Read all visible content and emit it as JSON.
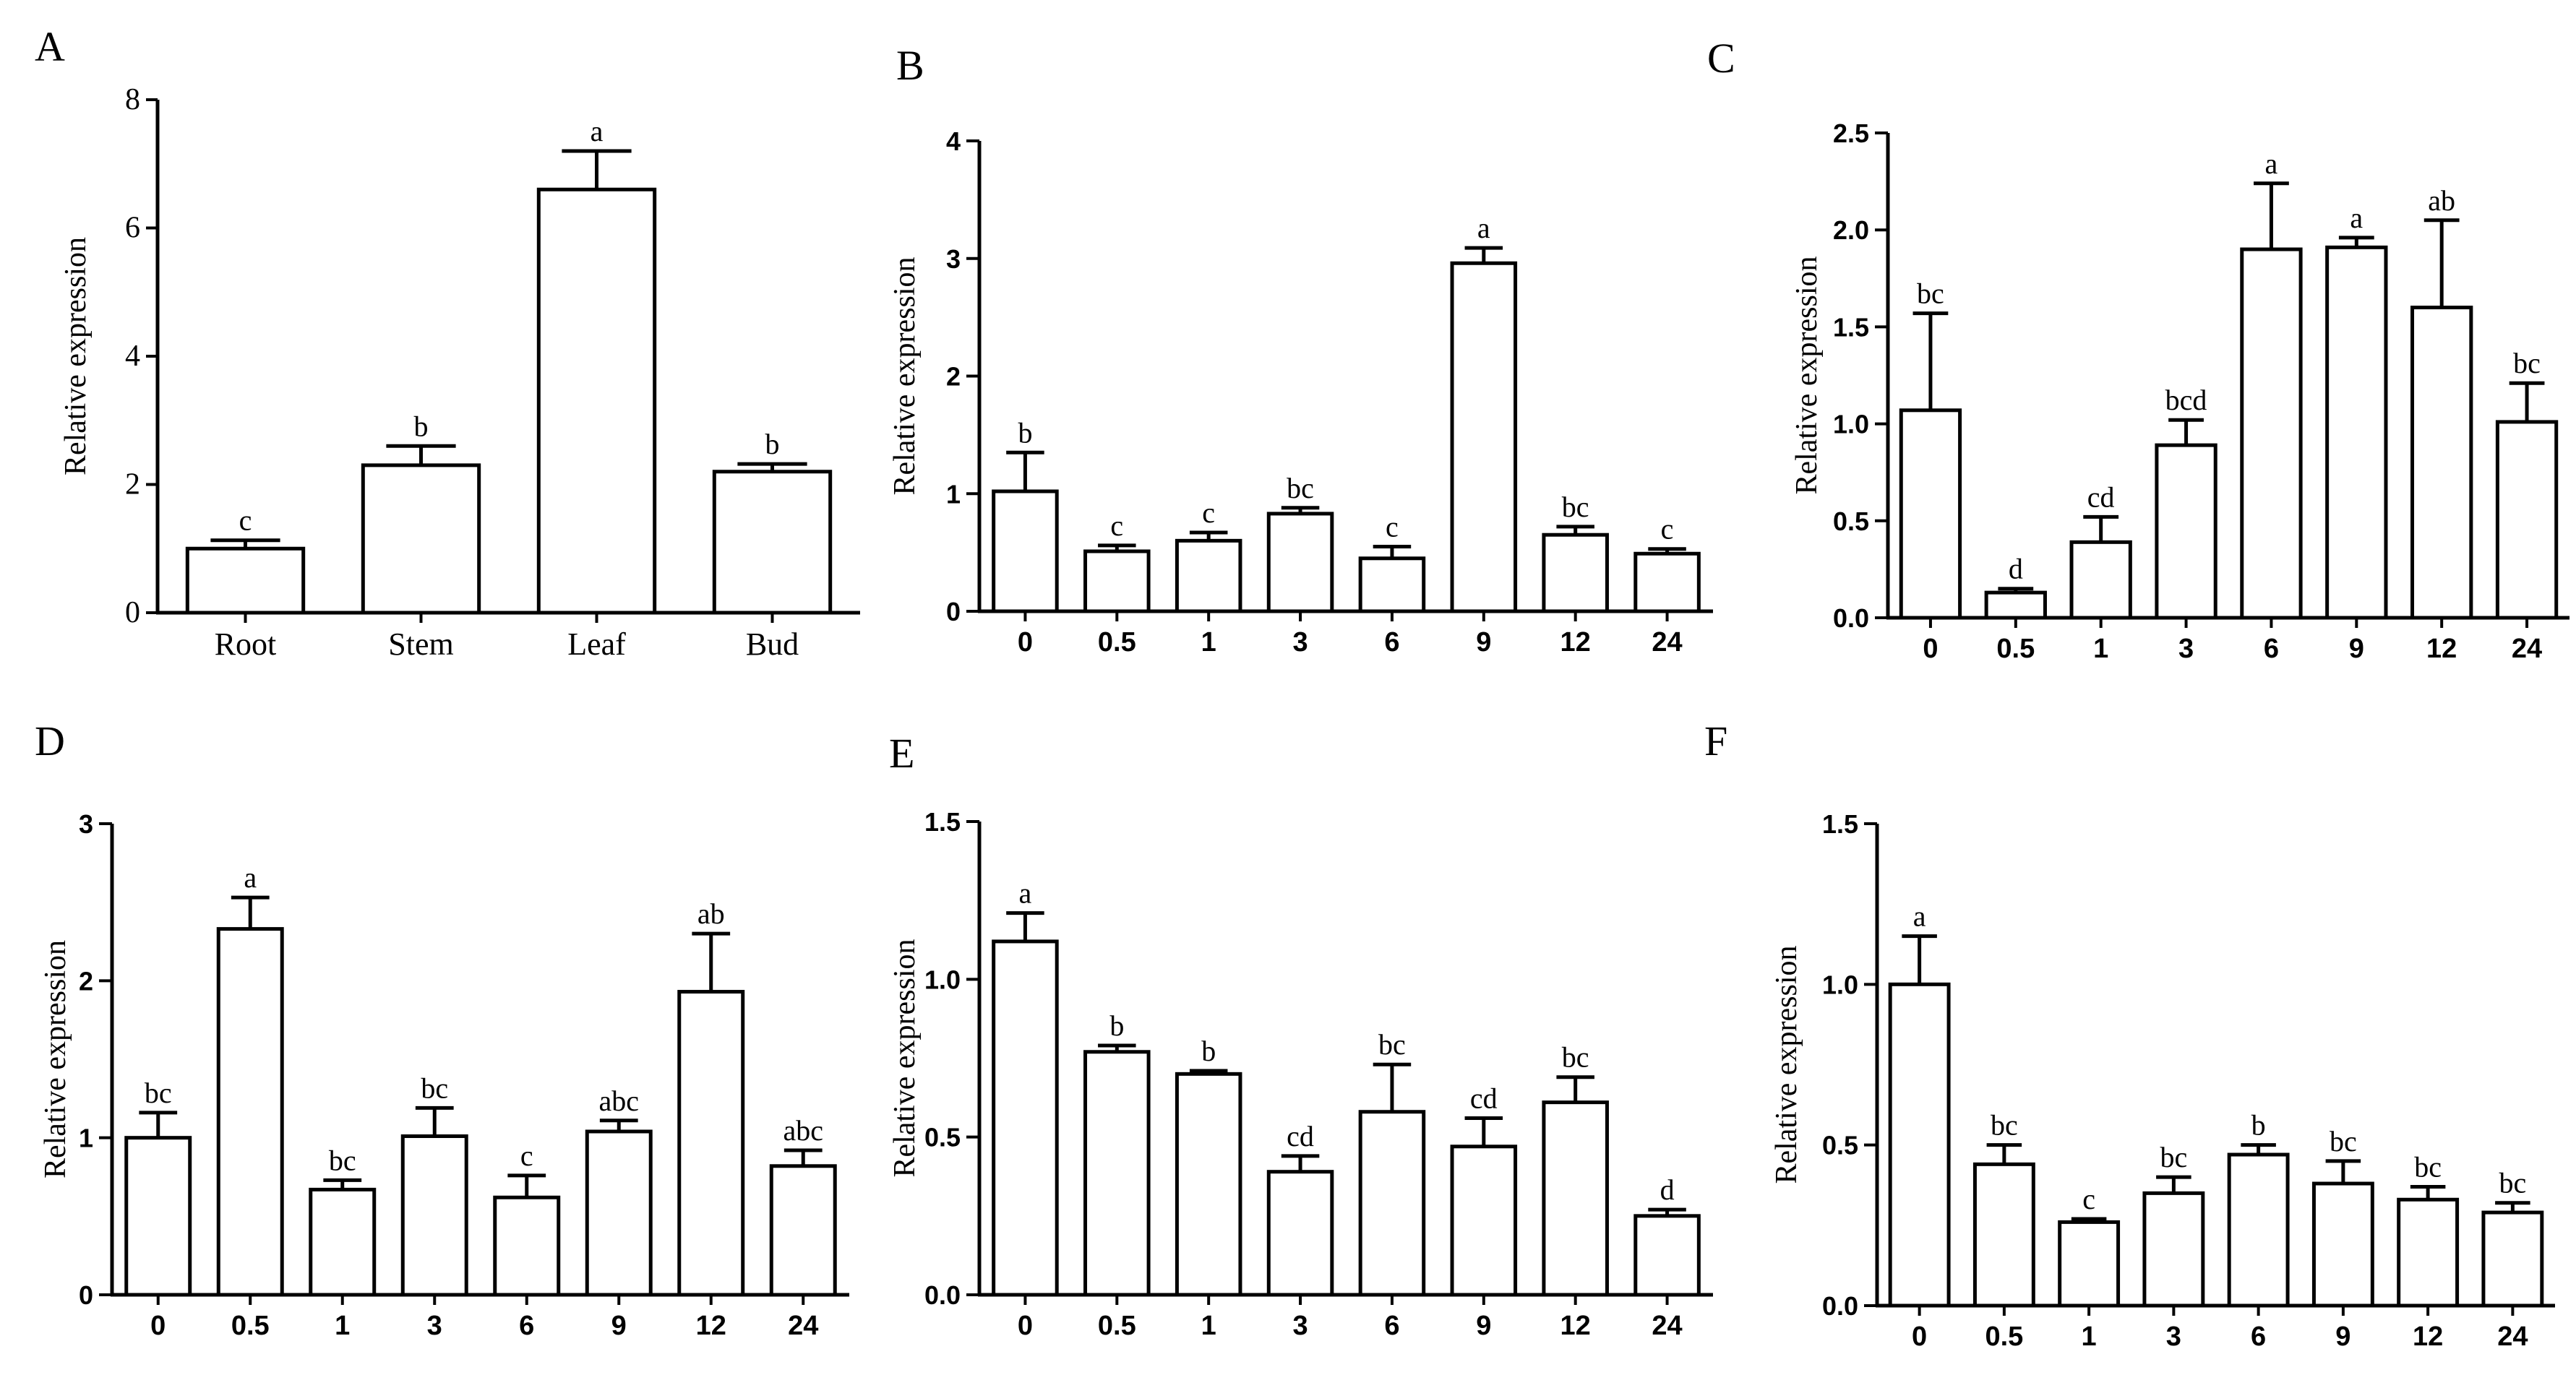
{
  "chart_data": [
    {
      "panel": "A",
      "type": "bar",
      "ylabel": "Relative  expression",
      "ylim": [
        0,
        8
      ],
      "yticks": [
        "0",
        "2",
        "4",
        "6",
        "8"
      ],
      "categories": [
        "Root",
        "Stem",
        "Leaf",
        "Bud"
      ],
      "values": [
        1.0,
        2.3,
        6.6,
        2.2
      ],
      "errors": [
        0.13,
        0.3,
        0.6,
        0.12
      ],
      "letters": [
        "c",
        "b",
        "a",
        "b"
      ]
    },
    {
      "panel": "B",
      "type": "bar",
      "ylabel": "Relative  expression",
      "ylim": [
        0,
        4
      ],
      "yticks": [
        "0",
        "1",
        "2",
        "3",
        "4"
      ],
      "categories": [
        "0",
        "0.5",
        "1",
        "3",
        "6",
        "9",
        "12",
        "24"
      ],
      "values": [
        1.02,
        0.51,
        0.6,
        0.83,
        0.45,
        2.96,
        0.65,
        0.49
      ],
      "errors": [
        0.33,
        0.05,
        0.07,
        0.05,
        0.1,
        0.13,
        0.07,
        0.04
      ],
      "letters": [
        "b",
        "c",
        "c",
        "bc",
        "c",
        "a",
        "bc",
        "c"
      ]
    },
    {
      "panel": "C",
      "type": "bar",
      "ylabel": "Relative  expression",
      "ylim": [
        0,
        2.5
      ],
      "yticks": [
        "0.0",
        "0.5",
        "1.0",
        "1.5",
        "2.0",
        "2.5"
      ],
      "categories": [
        "0",
        "0.5",
        "1",
        "3",
        "6",
        "9",
        "12",
        "24"
      ],
      "values": [
        1.07,
        0.13,
        0.39,
        0.89,
        1.9,
        1.91,
        1.6,
        1.01
      ],
      "errors": [
        0.5,
        0.02,
        0.13,
        0.13,
        0.34,
        0.05,
        0.45,
        0.2
      ],
      "letters": [
        "bc",
        "d",
        "cd",
        "bcd",
        "a",
        "a",
        "ab",
        "bc"
      ]
    },
    {
      "panel": "D",
      "type": "bar",
      "ylabel": "Relative  expression",
      "ylim": [
        0,
        3
      ],
      "yticks": [
        "0",
        "1",
        "2",
        "3"
      ],
      "categories": [
        "0",
        "0.5",
        "1",
        "3",
        "6",
        "9",
        "12",
        "24"
      ],
      "values": [
        1.0,
        2.33,
        0.67,
        1.01,
        0.62,
        1.04,
        1.93,
        0.82
      ],
      "errors": [
        0.16,
        0.2,
        0.06,
        0.18,
        0.14,
        0.07,
        0.37,
        0.1
      ],
      "letters": [
        "bc",
        "a",
        "bc",
        "bc",
        "c",
        "abc",
        "ab",
        "abc"
      ]
    },
    {
      "panel": "E",
      "type": "bar",
      "ylabel": "Relative  expression",
      "ylim": [
        0,
        1.5
      ],
      "yticks": [
        "0.0",
        "0.5",
        "1.0",
        "1.5"
      ],
      "categories": [
        "0",
        "0.5",
        "1",
        "3",
        "6",
        "9",
        "12",
        "24"
      ],
      "values": [
        1.12,
        0.77,
        0.7,
        0.39,
        0.58,
        0.47,
        0.61,
        0.25
      ],
      "errors": [
        0.09,
        0.02,
        0.01,
        0.05,
        0.15,
        0.09,
        0.08,
        0.02
      ],
      "letters": [
        "a",
        "b",
        "b",
        "cd",
        "bc",
        "cd",
        "bc",
        "d"
      ]
    },
    {
      "panel": "F",
      "type": "bar",
      "ylabel": "Relative  expression",
      "ylim": [
        0,
        1.5
      ],
      "yticks": [
        "0.0",
        "0.5",
        "1.0",
        "1.5"
      ],
      "categories": [
        "0",
        "0.5",
        "1",
        "3",
        "6",
        "9",
        "12",
        "24"
      ],
      "values": [
        1.0,
        0.44,
        0.26,
        0.35,
        0.47,
        0.38,
        0.33,
        0.29
      ],
      "errors": [
        0.15,
        0.06,
        0.01,
        0.05,
        0.03,
        0.07,
        0.04,
        0.03
      ],
      "letters": [
        "a",
        "bc",
        "c",
        "bc",
        "b",
        "bc",
        "bc",
        "bc"
      ]
    }
  ]
}
